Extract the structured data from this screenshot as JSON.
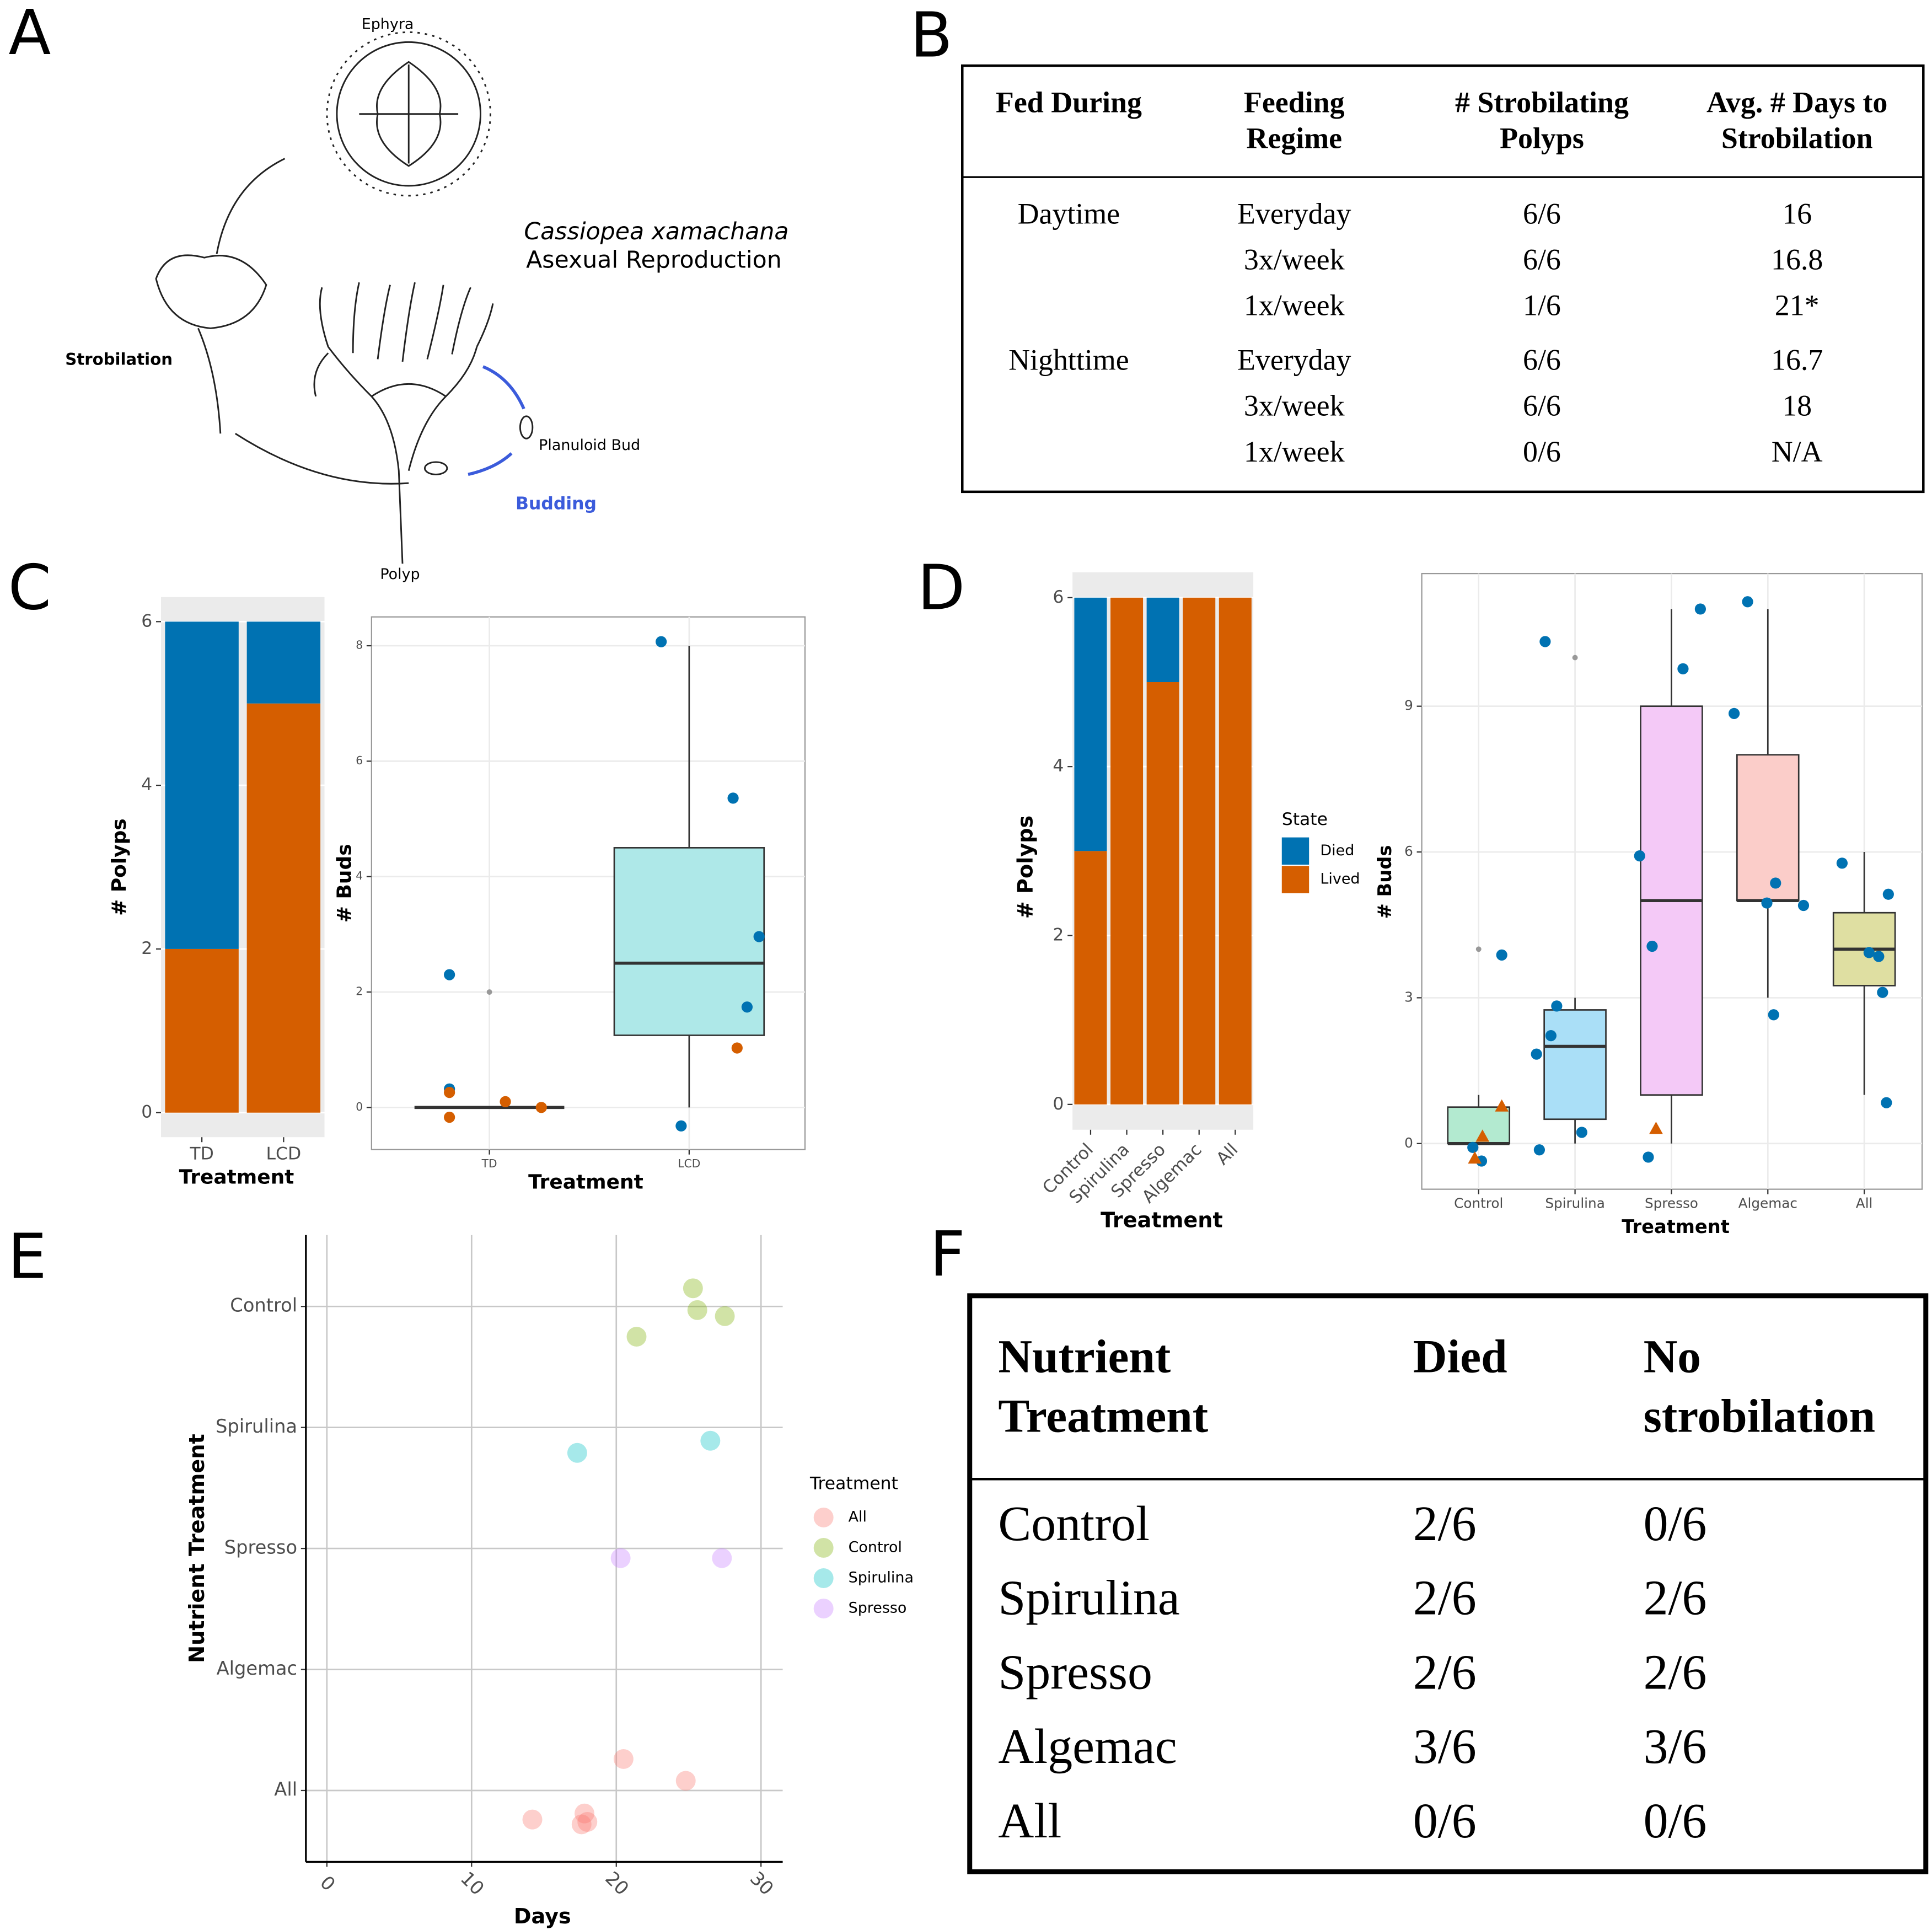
{
  "panel_labels": [
    "A",
    "B",
    "C",
    "D",
    "E",
    "F"
  ],
  "diagram": {
    "ephyra": "Ephyra",
    "species": "Cassiopea xamachana",
    "subtitle": "Asexual Reproduction",
    "strobilation": "Strobilation",
    "bud": "Planuloid Bud",
    "budding": "Budding",
    "polyp": "Polyp"
  },
  "table_b": {
    "header": [
      [
        "Fed During"
      ],
      [
        "Feeding",
        "Regime"
      ],
      [
        "# Strobilating",
        "Polyps"
      ],
      [
        "Avg. # Days to",
        "Strobilation"
      ]
    ],
    "groups": [
      {
        "fed": "Daytime",
        "rows": [
          [
            "Everyday",
            "6/6",
            "16"
          ],
          [
            "3x/week",
            "6/6",
            "16.8"
          ],
          [
            "1x/week",
            "1/6",
            "21*"
          ]
        ]
      },
      {
        "fed": "Nighttime",
        "rows": [
          [
            "Everyday",
            "6/6",
            "16.7"
          ],
          [
            "3x/week",
            "6/6",
            "18"
          ],
          [
            "1x/week",
            "0/6",
            "N/A"
          ]
        ]
      }
    ]
  },
  "chart_data": [
    {
      "type": "bar",
      "categories": [
        "TD",
        "LCD"
      ],
      "series": [
        {
          "color": "#0072B2",
          "values": [
            4,
            1
          ]
        },
        {
          "color": "#D55E00",
          "values": [
            2,
            5
          ]
        }
      ],
      "ylim": [
        -0.3,
        6.3
      ],
      "yticks": [
        0,
        2,
        4,
        6
      ],
      "x_label": "Treatment",
      "y_label": "# Polyps",
      "grid": true
    },
    {
      "type": "box",
      "xlim": [
        0.41,
        2.58
      ],
      "xticks": [
        {
          "value": 1,
          "label": "TD"
        },
        {
          "value": 2,
          "label": "LCD"
        }
      ],
      "ylim": [
        -0.73,
        8.5
      ],
      "yticks": [
        0,
        2,
        4,
        6,
        8
      ],
      "x_label": "Treatment",
      "y_label": "# Buds",
      "grid": true,
      "boxes": [
        {
          "x": 1,
          "min": 0,
          "q1": 0,
          "median": 0,
          "q3": 0,
          "max": 0,
          "outliers": [
            2
          ],
          "color": "#aee8e8"
        },
        {
          "x": 2,
          "min": 0,
          "q1": 1.25,
          "median": 2.5,
          "q3": 4.5,
          "max": 8,
          "outliers": [],
          "color": "#aee8e8"
        }
      ],
      "points": [
        {
          "color": "#0072B2",
          "shape": "circle",
          "x": [
            0.8,
            0.8,
            1.86,
            2.22,
            2.35,
            2.29,
            1.96
          ],
          "y": [
            2.3,
            0.32,
            8.07,
            5.36,
            2.96,
            1.74,
            -0.32
          ]
        },
        {
          "color": "#D55E00",
          "shape": "circle",
          "x": [
            0.8,
            0.8,
            1.08,
            1.26,
            2.24
          ],
          "y": [
            0.26,
            -0.17,
            0.1,
            0,
            1.03
          ]
        }
      ]
    },
    {
      "type": "bar",
      "categories": [
        "Control",
        "Spirulina",
        "Spresso",
        "Algemac",
        "All"
      ],
      "series": [
        {
          "name": "Died",
          "color": "#0072B2",
          "values": [
            3,
            0,
            1,
            0,
            0
          ]
        },
        {
          "name": "Lived",
          "color": "#D55E00",
          "values": [
            3,
            6,
            5,
            6,
            6
          ]
        }
      ],
      "legend_title": "State",
      "ylim": [
        -0.3,
        6.3
      ],
      "yticks": [
        0,
        2,
        4,
        6
      ],
      "x_label": "Treatment",
      "y_label": "# Polyps",
      "grid": true
    },
    {
      "type": "box",
      "xlim": [
        0.41,
        5.6
      ],
      "xticks": [
        {
          "value": 1,
          "label": "Control"
        },
        {
          "value": 2,
          "label": "Spirulina"
        },
        {
          "value": 3,
          "label": "Spresso"
        },
        {
          "value": 4,
          "label": "Algemac"
        },
        {
          "value": 5,
          "label": "All"
        }
      ],
      "ylim": [
        -0.94,
        11.73
      ],
      "yticks": [
        0,
        3,
        6,
        9
      ],
      "x_label": "Treatment",
      "y_label": "# Buds",
      "grid": true,
      "boxes": [
        {
          "x": 1,
          "min": 0,
          "q1": 0,
          "median": 0,
          "q3": 0.75,
          "max": 1,
          "outliers": [
            4
          ],
          "color": "#b3ead0"
        },
        {
          "x": 2,
          "min": 0,
          "q1": 0.5,
          "median": 2,
          "q3": 2.75,
          "max": 3,
          "outliers": [
            10
          ],
          "color": "#aadff7"
        },
        {
          "x": 3,
          "min": 0,
          "q1": 1,
          "median": 5,
          "q3": 9,
          "max": 11,
          "outliers": [],
          "color": "#f4c9f7"
        },
        {
          "x": 4,
          "min": 3,
          "q1": 5,
          "median": 5,
          "q3": 8,
          "max": 11,
          "outliers": [],
          "color": "#fbcdc9"
        },
        {
          "x": 5,
          "min": 1,
          "q1": 3.25,
          "median": 4,
          "q3": 4.75,
          "max": 6,
          "outliers": [],
          "color": "#dfdfa2"
        }
      ],
      "points": [
        {
          "color": "#0072B2",
          "shape": "circle",
          "x": [
            1.24,
            0.94,
            1.03,
            1.69,
            1.81,
            1.75,
            1.6,
            2.07,
            1.63,
            2.67,
            2.8,
            3.12,
            3.3,
            2.76,
            3.79,
            3.65,
            4.08,
            3.99,
            4.37,
            4.06,
            4.77,
            5.25,
            5.05,
            5.15,
            5.19,
            5.23
          ],
          "y": [
            3.88,
            -0.08,
            -0.36,
            10.33,
            2.83,
            2.22,
            1.84,
            0.23,
            -0.13,
            5.92,
            4.06,
            9.77,
            11.0,
            -0.28,
            11.15,
            8.85,
            5.36,
            4.95,
            4.9,
            2.65,
            5.77,
            5.13,
            3.93,
            3.85,
            3.11,
            0.84
          ]
        },
        {
          "color": "#D55E00",
          "shape": "triangle",
          "x": [
            1.24,
            1.04,
            0.96,
            2.84
          ],
          "y": [
            0.77,
            0.15,
            -0.3,
            0.31
          ]
        }
      ]
    },
    {
      "type": "scatter",
      "xlim": [
        -1.45,
        31.5
      ],
      "xticks": [
        0,
        10,
        20,
        30
      ],
      "ylim": [
        0.41,
        5.59
      ],
      "yticks": [
        {
          "value": 1,
          "label": "All"
        },
        {
          "value": 2,
          "label": "Algemac"
        },
        {
          "value": 3,
          "label": "Spresso"
        },
        {
          "value": 4,
          "label": "Spirulina"
        },
        {
          "value": 5,
          "label": "Control"
        }
      ],
      "x_label": "Days",
      "y_label": "Nutrient Treatment",
      "grid": true,
      "legend_title": "Treatment",
      "series": [
        {
          "name": "All",
          "color": "#F8766D",
          "x": [
            20.5,
            24.8,
            14.2,
            17.8,
            18.0,
            17.6
          ],
          "values": [
            1.26,
            1.08,
            0.76,
            0.81,
            0.74,
            0.72
          ]
        },
        {
          "name": "Control",
          "color": "#7CAE00",
          "x": [
            25.3,
            25.6,
            27.5,
            21.4
          ],
          "values": [
            5.15,
            4.97,
            4.92,
            4.75
          ]
        },
        {
          "name": "Spirulina",
          "color": "#00BFC4",
          "x": [
            17.3,
            26.5
          ],
          "values": [
            3.79,
            3.89
          ]
        },
        {
          "name": "Spresso",
          "color": "#C77CFF",
          "x": [
            20.3,
            27.3
          ],
          "values": [
            2.92,
            2.92
          ]
        }
      ]
    }
  ],
  "table_f": {
    "header": [
      [
        "Nutrient",
        "Treatment"
      ],
      [
        "Died"
      ],
      [
        "No",
        "strobilation"
      ]
    ],
    "rows": [
      [
        "Control",
        "2/6",
        "0/6"
      ],
      [
        "Spirulina",
        "2/6",
        "2/6"
      ],
      [
        "Spresso",
        "2/6",
        "2/6"
      ],
      [
        "Algemac",
        "3/6",
        "3/6"
      ],
      [
        "All",
        "0/6",
        "0/6"
      ]
    ]
  }
}
